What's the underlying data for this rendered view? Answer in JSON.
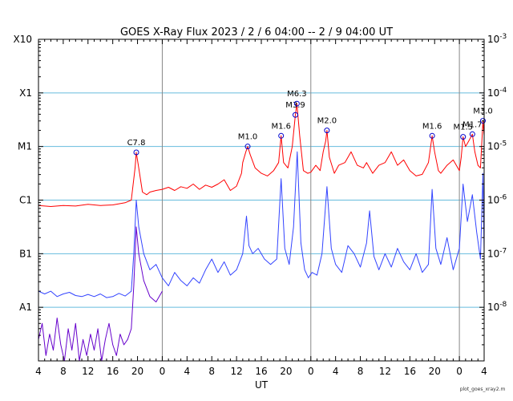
{
  "chart_data": {
    "type": "line",
    "title": "GOES X-Ray Flux   2023 /  2  /  6   04:00 --  2  /  9   04:00   UT",
    "xlabel": "UT",
    "footnote": "plot_goes_xray2.m",
    "x_range_hours": [
      0,
      72
    ],
    "x_tick_labels": [
      "4",
      "8",
      "12",
      "16",
      "20",
      "0",
      "4",
      "8",
      "12",
      "16",
      "20",
      "0",
      "4",
      "8",
      "12",
      "16",
      "20",
      "0",
      "4"
    ],
    "day_boundaries_hours": [
      20,
      44,
      68
    ],
    "y_log_range": [
      -9,
      -3
    ],
    "class_labels": [
      {
        "label": "A1",
        "exp": -8
      },
      {
        "label": "B1",
        "exp": -7
      },
      {
        "label": "C1",
        "exp": -6
      },
      {
        "label": "M1",
        "exp": -5
      },
      {
        "label": "X1",
        "exp": -4
      },
      {
        "label": "X10",
        "exp": -3
      }
    ],
    "right_labels": [
      {
        "mant": "10",
        "exp": "-3",
        "v": -3
      },
      {
        "mant": "10",
        "exp": "-4",
        "v": -4
      },
      {
        "mant": "10",
        "exp": "-5",
        "v": -5
      },
      {
        "mant": "10",
        "exp": "-6",
        "v": -6
      },
      {
        "mant": "10",
        "exp": "-7",
        "v": -7
      },
      {
        "mant": "10",
        "exp": "-8",
        "v": -8
      }
    ],
    "grid_levels_exp": [
      -4,
      -5,
      -6,
      -7,
      -8
    ],
    "colors": {
      "long": "#ff0000",
      "short": "#3344ff",
      "short_low": "#6600cc",
      "grid": "#66bbdd",
      "day_line": "#888888",
      "marker": "#0000cc"
    },
    "flares": [
      {
        "label": "C7.8",
        "t": 15.8,
        "exp": -5.11
      },
      {
        "label": "M1.0",
        "t": 33.8,
        "exp": -5.0
      },
      {
        "label": "M1.6",
        "t": 39.2,
        "exp": -4.8
      },
      {
        "label": "M3.9",
        "t": 41.5,
        "exp": -4.41
      },
      {
        "label": "M6.3",
        "t": 41.75,
        "exp": -4.2
      },
      {
        "label": "M2.0",
        "t": 46.6,
        "exp": -4.7
      },
      {
        "label": "M1.6",
        "t": 63.6,
        "exp": -4.8
      },
      {
        "label": "M1.5",
        "t": 68.6,
        "exp": -4.82
      },
      {
        "label": "M1.7",
        "t": 70.1,
        "exp": -4.77
      },
      {
        "label": "M3.0",
        "t": 71.8,
        "exp": -4.52
      }
    ],
    "series": [
      {
        "name": "",
        "x": [
          0,
          2,
          4,
          6,
          8,
          10,
          12,
          14,
          15,
          15.6,
          15.8,
          16.2,
          16.8,
          17.5,
          18,
          19,
          20,
          21,
          22,
          23,
          24,
          25,
          26,
          27,
          28,
          29,
          30,
          31,
          32,
          32.8,
          33,
          33.5,
          33.8,
          34.2,
          35,
          36,
          37,
          38,
          38.8,
          39.2,
          39.6,
          40.3,
          41,
          41.5,
          41.75,
          42.2,
          42.8,
          43.5,
          44,
          44.8,
          45.5,
          46,
          46.4,
          46.6,
          47,
          47.8,
          48.5,
          49.5,
          50.5,
          51.5,
          52.5,
          53,
          54,
          55,
          56,
          57,
          58,
          59,
          60,
          61,
          62,
          63,
          63.6,
          64,
          64.6,
          65,
          66,
          67,
          68,
          68.3,
          68.6,
          69,
          69.5,
          70.1,
          70.5,
          71,
          71.4,
          71.8,
          72
        ],
        "y": [
          -6.1,
          -6.12,
          -6.1,
          -6.11,
          -6.08,
          -6.1,
          -6.09,
          -6.05,
          -6.0,
          -5.4,
          -5.11,
          -5.4,
          -5.85,
          -5.9,
          -5.85,
          -5.82,
          -5.8,
          -5.76,
          -5.82,
          -5.75,
          -5.78,
          -5.7,
          -5.8,
          -5.72,
          -5.76,
          -5.7,
          -5.62,
          -5.82,
          -5.74,
          -5.5,
          -5.3,
          -5.1,
          -5.0,
          -5.15,
          -5.4,
          -5.5,
          -5.55,
          -5.45,
          -5.3,
          -4.8,
          -5.3,
          -5.4,
          -5.0,
          -4.41,
          -4.2,
          -4.8,
          -5.45,
          -5.5,
          -5.48,
          -5.35,
          -5.45,
          -5.1,
          -4.9,
          -4.7,
          -5.2,
          -5.5,
          -5.35,
          -5.3,
          -5.1,
          -5.35,
          -5.4,
          -5.3,
          -5.5,
          -5.35,
          -5.3,
          -5.1,
          -5.35,
          -5.25,
          -5.45,
          -5.55,
          -5.52,
          -5.3,
          -4.8,
          -5.1,
          -5.45,
          -5.5,
          -5.35,
          -5.25,
          -5.45,
          -5.2,
          -4.82,
          -5.0,
          -4.9,
          -4.77,
          -5.1,
          -5.35,
          -5.4,
          -4.52,
          -4.8
        ]
      },
      {
        "name": "",
        "x": [
          0,
          1,
          2,
          3,
          4,
          5,
          6,
          7,
          8,
          9,
          10,
          11,
          12,
          13,
          14,
          15,
          15.4,
          15.8,
          16.2,
          17,
          18,
          19,
          20,
          21,
          22,
          23,
          24,
          25,
          26,
          27,
          28,
          29,
          30,
          31,
          32,
          33,
          33.6,
          34,
          34.6,
          35.5,
          36.5,
          37.5,
          38.5,
          39.2,
          39.8,
          40.5,
          41.2,
          41.8,
          42.4,
          43,
          43.6,
          44.2,
          45,
          45.8,
          46.6,
          47.3,
          48,
          49,
          50,
          51,
          52,
          53,
          53.5,
          54.2,
          55,
          56,
          57,
          58,
          59,
          60,
          61,
          62,
          63,
          63.6,
          64.2,
          65,
          66,
          67,
          68,
          68.6,
          69.3,
          70.1,
          70.8,
          71.4,
          71.8,
          72
        ],
        "y": [
          -7.7,
          -7.75,
          -7.7,
          -7.8,
          -7.75,
          -7.72,
          -7.78,
          -7.8,
          -7.76,
          -7.8,
          -7.75,
          -7.82,
          -7.8,
          -7.74,
          -7.79,
          -7.7,
          -7.0,
          -6.0,
          -6.5,
          -7.0,
          -7.3,
          -7.2,
          -7.45,
          -7.6,
          -7.35,
          -7.5,
          -7.6,
          -7.45,
          -7.55,
          -7.3,
          -7.1,
          -7.35,
          -7.15,
          -7.4,
          -7.3,
          -7.0,
          -6.3,
          -6.85,
          -7.0,
          -6.9,
          -7.1,
          -7.2,
          -7.1,
          -5.6,
          -6.9,
          -7.2,
          -6.5,
          -5.1,
          -6.8,
          -7.3,
          -7.45,
          -7.35,
          -7.4,
          -7.0,
          -5.75,
          -6.9,
          -7.2,
          -7.35,
          -6.85,
          -7.0,
          -7.25,
          -6.8,
          -6.2,
          -7.05,
          -7.3,
          -7.0,
          -7.25,
          -6.9,
          -7.15,
          -7.3,
          -7.0,
          -7.35,
          -7.2,
          -5.8,
          -6.9,
          -7.2,
          -6.7,
          -7.3,
          -6.9,
          -5.7,
          -6.4,
          -5.9,
          -6.6,
          -7.1,
          -5.5,
          -7.0
        ]
      },
      {
        "name": "",
        "x": [
          0,
          0.6,
          1.2,
          1.8,
          2.4,
          3,
          3.6,
          4.2,
          4.8,
          5.4,
          6,
          6.6,
          7.2,
          7.8,
          8.4,
          9,
          9.6,
          10.2,
          10.8,
          11.4,
          12,
          12.6,
          13.2,
          13.8,
          14.4,
          15,
          15.4,
          15.8,
          16.2,
          17,
          18,
          19,
          20
        ],
        "y": [
          -8.6,
          -8.3,
          -8.9,
          -8.5,
          -8.8,
          -8.2,
          -8.7,
          -9.0,
          -8.4,
          -8.8,
          -8.3,
          -9.0,
          -8.6,
          -8.9,
          -8.5,
          -8.8,
          -8.4,
          -9.0,
          -8.6,
          -8.3,
          -8.7,
          -8.9,
          -8.5,
          -8.7,
          -8.6,
          -8.4,
          -7.6,
          -6.5,
          -7.0,
          -7.5,
          -7.8,
          -7.9,
          -7.7
        ]
      }
    ]
  }
}
